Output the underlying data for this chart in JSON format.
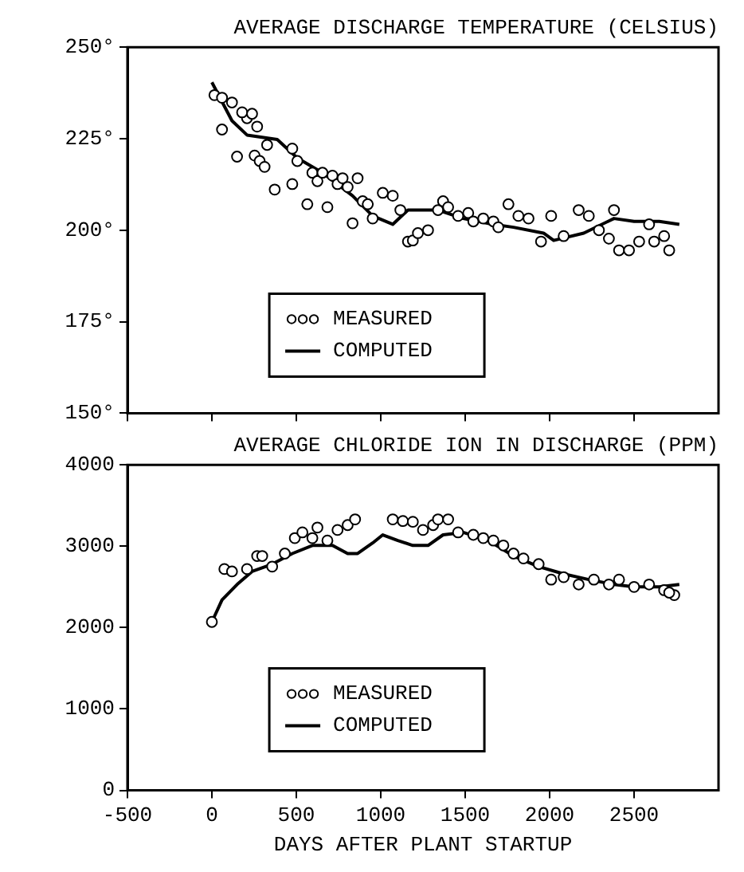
{
  "chart_data": [
    {
      "type": "line",
      "title": "AVERAGE DISCHARGE TEMPERATURE (CELSIUS)",
      "xlim": [
        -500,
        3000
      ],
      "xticks": [
        -500,
        0,
        500,
        1000,
        1500,
        2000,
        2500
      ],
      "ylim": [
        150,
        250
      ],
      "yticks": [
        {
          "value": 150,
          "label": "150°"
        },
        {
          "value": 175,
          "label": "175°"
        },
        {
          "value": 200,
          "label": "200°"
        },
        {
          "value": 225,
          "label": "225°"
        },
        {
          "value": 250,
          "label": "250°"
        }
      ],
      "tick_labels": "y",
      "grid": false,
      "legend": "bottom",
      "series": [
        {
          "name": "MEASURED",
          "type": "scatter",
          "marker": "circle",
          "color": "#000000",
          "x": [
            15,
            60,
            119,
            208,
            179,
            60,
            149,
            238,
            268,
            253,
            283,
            312,
            372,
            327,
            476,
            506,
            476,
            565,
            595,
            625,
            655,
            684,
            714,
            744,
            774,
            804,
            833,
            863,
            893,
            923,
            952,
            1012,
            1071,
            1116,
            1161,
            1190,
            1220,
            1280,
            1339,
            1369,
            1399,
            1458,
            1518,
            1548,
            1607,
            1667,
            1696,
            1756,
            1815,
            1875,
            1949,
            2009,
            2083,
            2172,
            2232,
            2292,
            2351,
            2381,
            2411,
            2470,
            2530,
            2589,
            2619,
            2678,
            2708
          ],
          "values": [
            236.9,
            236.2,
            234.9,
            230.6,
            232.2,
            227.5,
            220.1,
            231.8,
            228.3,
            220.4,
            218.9,
            217.3,
            211.1,
            223.3,
            222.3,
            218.9,
            212.6,
            207.1,
            215.7,
            213.4,
            215.7,
            206.3,
            214.9,
            212.6,
            214.2,
            211.8,
            201.9,
            214.2,
            207.9,
            207.1,
            203.2,
            210.2,
            209.4,
            205.5,
            196.9,
            197.2,
            199.2,
            200,
            205.5,
            207.9,
            206.3,
            203.9,
            204.7,
            202.4,
            203.2,
            202.4,
            200.8,
            207.1,
            203.9,
            203.2,
            196.9,
            203.9,
            198.4,
            205.5,
            203.9,
            200,
            197.7,
            205.5,
            194.5,
            194.5,
            196.9,
            201.6,
            196.9,
            198.4,
            194.5
          ]
        },
        {
          "name": "COMPUTED",
          "type": "line",
          "color": "#000000",
          "x": [
            0,
            119,
            208,
            387,
            506,
            655,
            833,
            952,
            1071,
            1161,
            1339,
            1488,
            1667,
            1786,
            1964,
            2024,
            2202,
            2381,
            2500,
            2649,
            2768
          ],
          "values": [
            240.4,
            229.9,
            226,
            224.8,
            219.7,
            215.7,
            209.4,
            203.9,
            201.6,
            205.5,
            205.5,
            203.2,
            201.6,
            200.8,
            199.2,
            197.2,
            199.2,
            203.2,
            202.4,
            202.4,
            201.6
          ]
        }
      ]
    },
    {
      "type": "line",
      "title": "AVERAGE CHLORIDE ION IN DISCHARGE (PPM)",
      "xlabel": "DAYS AFTER PLANT STARTUP",
      "xlim": [
        -500,
        3000
      ],
      "xticks": [
        -500,
        0,
        500,
        1000,
        1500,
        2000,
        2500
      ],
      "ylim": [
        0,
        4000
      ],
      "yticks": [
        0,
        1000,
        2000,
        3000,
        4000
      ],
      "grid": false,
      "legend": "bottom",
      "series": [
        {
          "name": "MEASURED",
          "type": "scatter",
          "marker": "circle",
          "color": "#000000",
          "x": [
            0,
            74,
            119,
            208,
            268,
            298,
            357,
            432,
            491,
            536,
            595,
            625,
            684,
            744,
            804,
            848,
            1071,
            1131,
            1190,
            1250,
            1310,
            1339,
            1399,
            1458,
            1548,
            1607,
            1667,
            1726,
            1786,
            1845,
            1935,
            2009,
            2083,
            2172,
            2262,
            2351,
            2411,
            2500,
            2589,
            2678,
            2738,
            2708
          ],
          "values": [
            2070,
            2720,
            2690,
            2720,
            2880,
            2880,
            2750,
            2910,
            3100,
            3170,
            3100,
            3230,
            3070,
            3200,
            3260,
            3330,
            3330,
            3310,
            3300,
            3200,
            3260,
            3330,
            3330,
            3170,
            3140,
            3100,
            3070,
            3010,
            2910,
            2850,
            2780,
            2590,
            2620,
            2530,
            2590,
            2530,
            2590,
            2500,
            2530,
            2460,
            2400,
            2430
          ]
        },
        {
          "name": "COMPUTED",
          "type": "line",
          "color": "#000000",
          "x": [
            0,
            60,
            149,
            238,
            357,
            476,
            595,
            714,
            804,
            863,
            952,
            1012,
            1101,
            1190,
            1280,
            1369,
            1488,
            1637,
            1786,
            1935,
            2083,
            2232,
            2381,
            2500,
            2649,
            2768
          ],
          "values": [
            2070,
            2340,
            2530,
            2690,
            2780,
            2910,
            3010,
            3010,
            2910,
            2910,
            3040,
            3140,
            3070,
            3010,
            3010,
            3140,
            3170,
            3070,
            2880,
            2750,
            2660,
            2590,
            2530,
            2500,
            2500,
            2530
          ]
        }
      ]
    }
  ]
}
